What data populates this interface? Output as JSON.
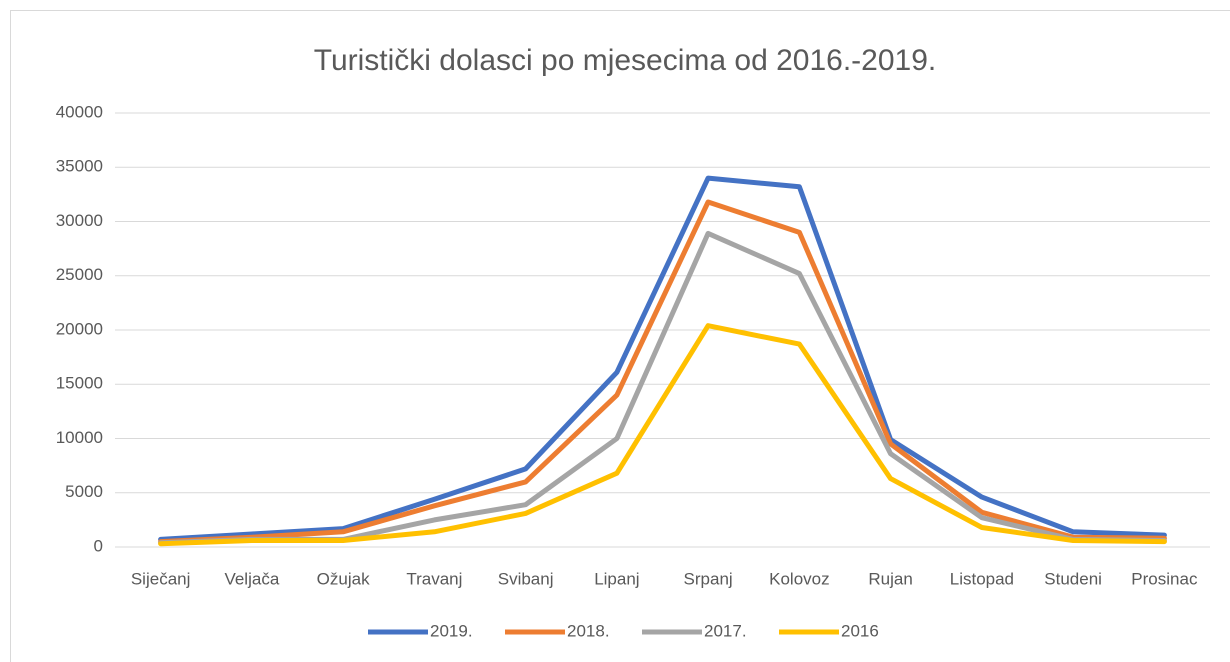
{
  "chart_data": {
    "type": "line",
    "title": "Turistički dolasci po mjesecima od 2016.-2019.",
    "categories": [
      "Siječanj",
      "Veljača",
      "Ožujak",
      "Travanj",
      "Svibanj",
      "Lipanj",
      "Srpanj",
      "Kolovoz",
      "Rujan",
      "Listopad",
      "Studeni",
      "Prosinac"
    ],
    "series": [
      {
        "name": "2019.",
        "color": "#4472c4",
        "values": [
          700,
          1200,
          1700,
          4400,
          7200,
          16100,
          34000,
          33200,
          9900,
          4600,
          1400,
          1100
        ]
      },
      {
        "name": "2018.",
        "color": "#ed7d31",
        "values": [
          500,
          900,
          1400,
          3800,
          6000,
          14000,
          31800,
          29000,
          9500,
          3200,
          900,
          800
        ]
      },
      {
        "name": "2017.",
        "color": "#a5a5a5",
        "values": [
          400,
          700,
          700,
          2500,
          3900,
          10000,
          28900,
          25200,
          8600,
          2700,
          700,
          600
        ]
      },
      {
        "name": "2016",
        "color": "#ffc000",
        "values": [
          300,
          600,
          600,
          1400,
          3100,
          6800,
          20400,
          18700,
          6300,
          1800,
          600,
          500
        ]
      }
    ],
    "ylim": [
      0,
      40000
    ],
    "yticks": [
      0,
      5000,
      10000,
      15000,
      20000,
      25000,
      30000,
      35000,
      40000
    ],
    "grid": true,
    "legend": "bottom"
  }
}
